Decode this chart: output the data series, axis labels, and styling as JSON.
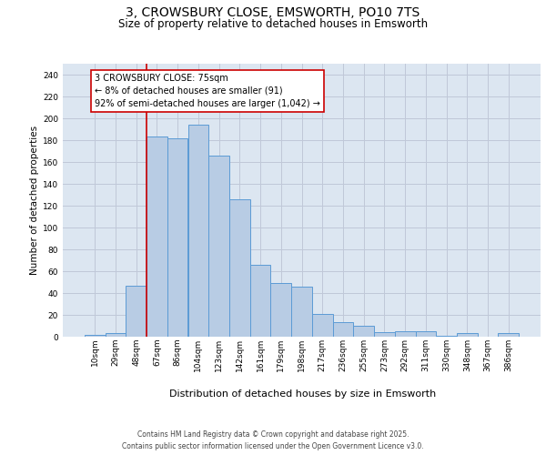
{
  "title1": "3, CROWSBURY CLOSE, EMSWORTH, PO10 7TS",
  "title2": "Size of property relative to detached houses in Emsworth",
  "xlabel": "Distribution of detached houses by size in Emsworth",
  "ylabel": "Number of detached properties",
  "categories": [
    "10sqm",
    "29sqm",
    "48sqm",
    "67sqm",
    "86sqm",
    "104sqm",
    "123sqm",
    "142sqm",
    "161sqm",
    "179sqm",
    "198sqm",
    "217sqm",
    "236sqm",
    "255sqm",
    "273sqm",
    "292sqm",
    "311sqm",
    "330sqm",
    "348sqm",
    "367sqm",
    "386sqm"
  ],
  "values": [
    2,
    3,
    47,
    183,
    182,
    194,
    166,
    126,
    66,
    49,
    46,
    21,
    13,
    10,
    4,
    5,
    5,
    1,
    3,
    0,
    3
  ],
  "bar_color": "#b8cce4",
  "bar_edge_color": "#5b9bd5",
  "annotation_text": "3 CROWSBURY CLOSE: 75sqm\n← 8% of detached houses are smaller (91)\n92% of semi-detached houses are larger (1,042) →",
  "annotation_box_color": "#ffffff",
  "annotation_box_edge_color": "#cc0000",
  "vline_color": "#cc0000",
  "vline_x": 2.5,
  "ylim": [
    0,
    250
  ],
  "yticks": [
    0,
    20,
    40,
    60,
    80,
    100,
    120,
    140,
    160,
    180,
    200,
    220,
    240
  ],
  "grid_color": "#c0c8d8",
  "background_color": "#dce6f1",
  "footer_line1": "Contains HM Land Registry data © Crown copyright and database right 2025.",
  "footer_line2": "Contains public sector information licensed under the Open Government Licence v3.0.",
  "title_fontsize": 10,
  "subtitle_fontsize": 8.5,
  "ylabel_fontsize": 7.5,
  "xlabel_fontsize": 8,
  "tick_fontsize": 6.5,
  "annot_fontsize": 7,
  "footer_fontsize": 5.5
}
